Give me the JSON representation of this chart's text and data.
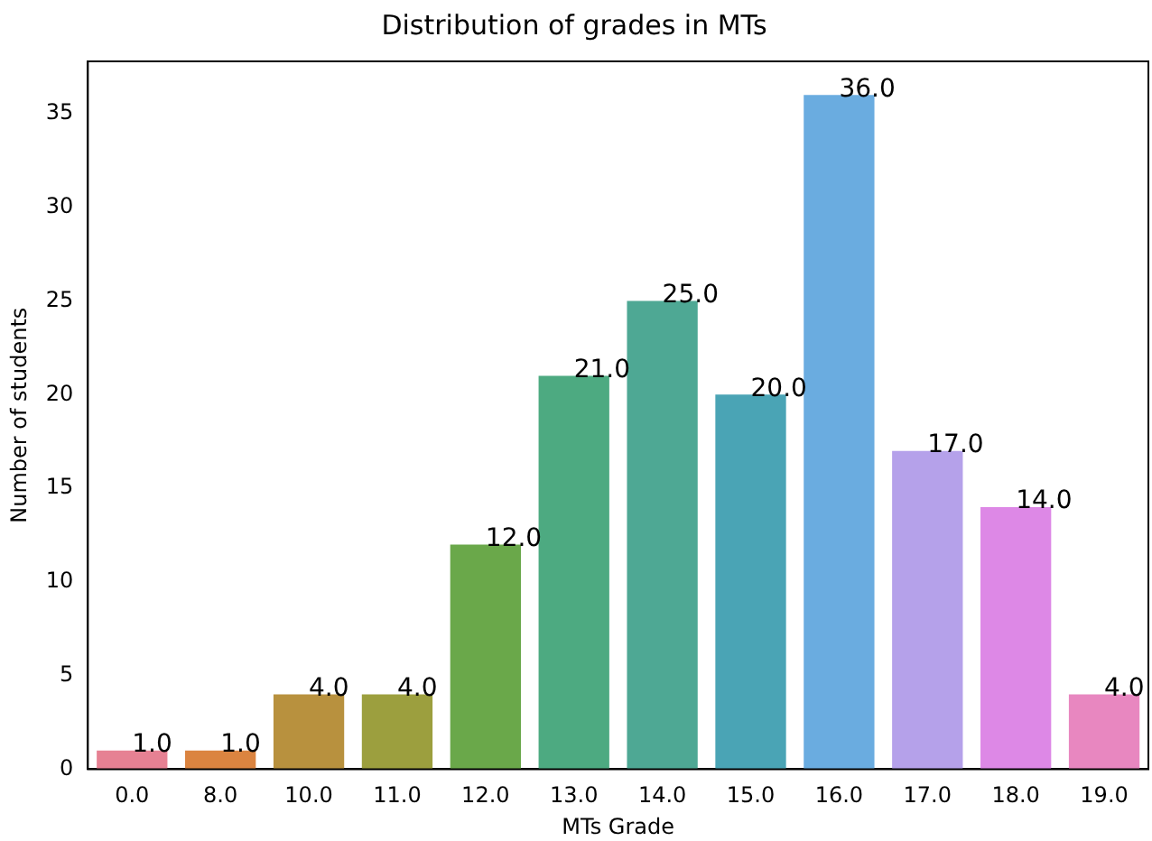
{
  "chart_data": {
    "type": "bar",
    "title": "Distribution of grades in MTs",
    "xlabel": "MTs Grade",
    "ylabel": "Number of students",
    "categories": [
      "0.0",
      "8.0",
      "10.0",
      "11.0",
      "12.0",
      "13.0",
      "14.0",
      "15.0",
      "16.0",
      "17.0",
      "18.0",
      "19.0"
    ],
    "values": [
      1,
      1,
      4,
      4,
      12,
      21,
      25,
      20,
      36,
      17,
      14,
      4
    ],
    "value_labels": [
      "1.0",
      "1.0",
      "4.0",
      "4.0",
      "12.0",
      "21.0",
      "25.0",
      "20.0",
      "36.0",
      "17.0",
      "14.0",
      "4.0"
    ],
    "colors": [
      "#e68193",
      "#db8440",
      "#b8913e",
      "#9c9f3e",
      "#6aa84a",
      "#4daa81",
      "#4ea894",
      "#4aa4b5",
      "#6aace0",
      "#b5a1ea",
      "#dd88e6",
      "#e887c0"
    ],
    "ylim": [
      0,
      37.8
    ],
    "yticks": [
      0,
      5,
      10,
      15,
      20,
      25,
      30,
      35
    ],
    "grid": false,
    "legend": false
  }
}
